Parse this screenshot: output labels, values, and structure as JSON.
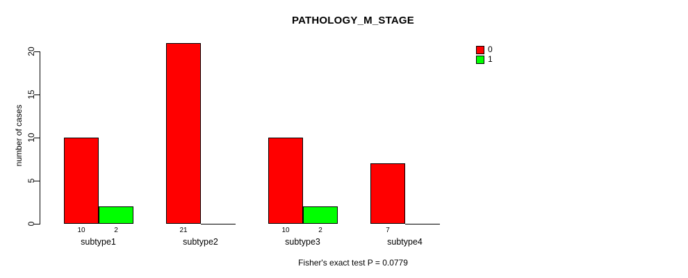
{
  "chart_data": {
    "type": "bar",
    "title": "PATHOLOGY_M_STAGE",
    "xlabel": "",
    "ylabel": "number of cases",
    "categories": [
      "subtype1",
      "subtype2",
      "subtype3",
      "subtype4"
    ],
    "series": [
      {
        "name": "0",
        "color": "#ff0000",
        "values": [
          10,
          21,
          10,
          7
        ]
      },
      {
        "name": "1",
        "color": "#00ff00",
        "values": [
          2,
          0,
          2,
          0
        ]
      }
    ],
    "bar_value_labels": [
      [
        "10",
        "2"
      ],
      [
        "21",
        ""
      ],
      [
        "10",
        "2"
      ],
      [
        "7",
        ""
      ]
    ],
    "yticks": [
      "0",
      "5",
      "10",
      "15",
      "20"
    ],
    "ylim": [
      0,
      21
    ],
    "grid": false,
    "legend_position": "right",
    "annotation": "Fisher's exact test P = 0.0779"
  },
  "colors": {
    "axis": "#000000",
    "text": "#000000",
    "background": "#ffffff"
  }
}
